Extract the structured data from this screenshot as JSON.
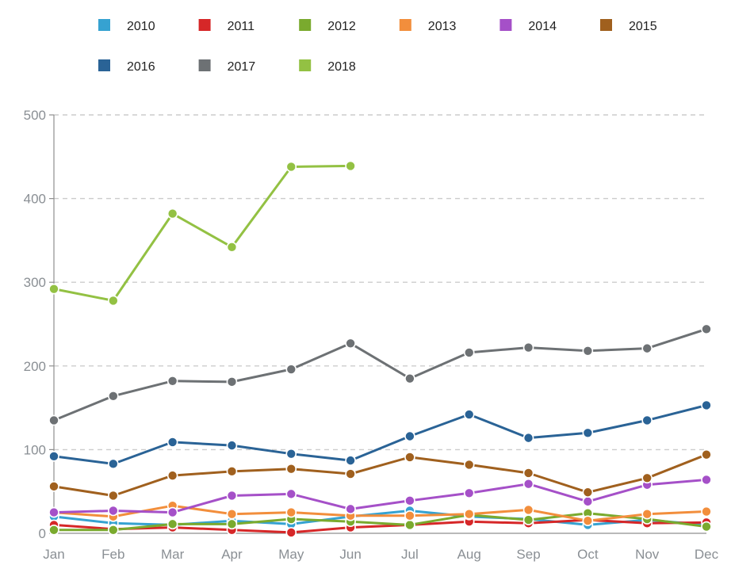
{
  "chart_data": {
    "type": "line",
    "title": "",
    "xlabel": "",
    "ylabel": "",
    "ylim": [
      0,
      500
    ],
    "yticks": [
      0,
      100,
      200,
      300,
      400,
      500
    ],
    "grid": true,
    "legend_position": "top",
    "categories": [
      "Jan",
      "Feb",
      "Mar",
      "Apr",
      "May",
      "Jun",
      "Jul",
      "Aug",
      "Sep",
      "Oct",
      "Nov",
      "Dec"
    ],
    "series": [
      {
        "name": "2010",
        "color": "#36a2d1",
        "values": [
          20,
          12,
          10,
          15,
          11,
          20,
          27,
          20,
          17,
          10,
          16,
          10
        ]
      },
      {
        "name": "2011",
        "color": "#d62728",
        "values": [
          10,
          5,
          7,
          4,
          1,
          7,
          10,
          14,
          12,
          16,
          12,
          13
        ]
      },
      {
        "name": "2012",
        "color": "#7aaa2e",
        "values": [
          4,
          4,
          11,
          11,
          17,
          14,
          10,
          22,
          16,
          24,
          17,
          8
        ]
      },
      {
        "name": "2013",
        "color": "#f28e3c",
        "values": [
          25,
          20,
          33,
          23,
          25,
          21,
          21,
          23,
          28,
          15,
          23,
          26
        ]
      },
      {
        "name": "2014",
        "color": "#a550c8",
        "values": [
          25,
          27,
          25,
          45,
          47,
          29,
          39,
          48,
          59,
          38,
          58,
          64
        ]
      },
      {
        "name": "2015",
        "color": "#a0601e",
        "values": [
          56,
          45,
          69,
          74,
          77,
          71,
          91,
          82,
          72,
          49,
          66,
          94
        ]
      },
      {
        "name": "2016",
        "color": "#2a6396",
        "values": [
          92,
          83,
          109,
          105,
          95,
          87,
          116,
          142,
          114,
          120,
          135,
          153
        ]
      },
      {
        "name": "2017",
        "color": "#6d7174",
        "values": [
          135,
          164,
          182,
          181,
          196,
          227,
          185,
          216,
          222,
          218,
          221,
          244
        ]
      },
      {
        "name": "2018",
        "color": "#93c143",
        "values": [
          292,
          278,
          382,
          342,
          438,
          439,
          null,
          null,
          null,
          null,
          null,
          null
        ]
      }
    ]
  }
}
